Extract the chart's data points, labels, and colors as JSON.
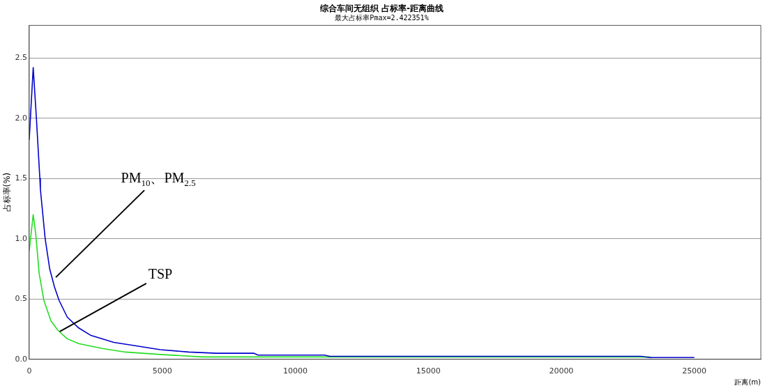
{
  "chart_data": {
    "type": "line",
    "title": "综合车间无组织 占标率-距离曲线",
    "subtitle": "最大占标率Pmax=2.422351%",
    "xlabel": "距离(m)",
    "ylabel": "占标率(%)",
    "xlim": [
      0,
      27500
    ],
    "xticks": [
      0,
      5000,
      10000,
      15000,
      20000,
      25000
    ],
    "ylim": [
      0,
      2.77
    ],
    "yticks": [
      {
        "value": 0,
        "label": "0.0"
      },
      {
        "value": 0.5,
        "label": "0.5"
      },
      {
        "value": 1,
        "label": "1.0"
      },
      {
        "value": 1.5,
        "label": "1.5"
      },
      {
        "value": 2,
        "label": "2.0"
      },
      {
        "value": 2.5,
        "label": "2.5"
      }
    ],
    "grid": "y",
    "legend": false,
    "marker": "none",
    "line_style": "solid",
    "series": [
      {
        "color": "#0000cc",
        "x": [
          0,
          150,
          270,
          400,
          420,
          600,
          770,
          950,
          1120,
          1430,
          1860,
          2300,
          3180,
          4060,
          4930,
          6000,
          7040,
          8450,
          8600,
          11100,
          11300,
          23000,
          23300,
          25000
        ],
        "values": [
          1.82,
          2.42,
          2.0,
          1.5,
          1.41,
          1.0,
          0.75,
          0.6,
          0.49,
          0.35,
          0.26,
          0.2,
          0.14,
          0.11,
          0.08,
          0.06,
          0.05,
          0.05,
          0.035,
          0.035,
          0.025,
          0.025,
          0.015,
          0.015
        ]
      },
      {
        "color": "#22dd22",
        "x": [
          0,
          150,
          245,
          375,
          550,
          815,
          1080,
          1430,
          1860,
          2740,
          3620,
          4930,
          6500,
          23300,
          23400
        ],
        "values": [
          0.9,
          1.2,
          1.04,
          0.71,
          0.49,
          0.32,
          0.24,
          0.17,
          0.13,
          0.09,
          0.06,
          0.04,
          0.02,
          0.02,
          0.01
        ]
      }
    ],
    "annotations": [
      {
        "text": "PM$_{10}$、PM$_{2.5}$",
        "x": 1000,
        "y": 0.68
      },
      {
        "text": "TSP",
        "x": 1150,
        "y": 0.23
      }
    ]
  }
}
